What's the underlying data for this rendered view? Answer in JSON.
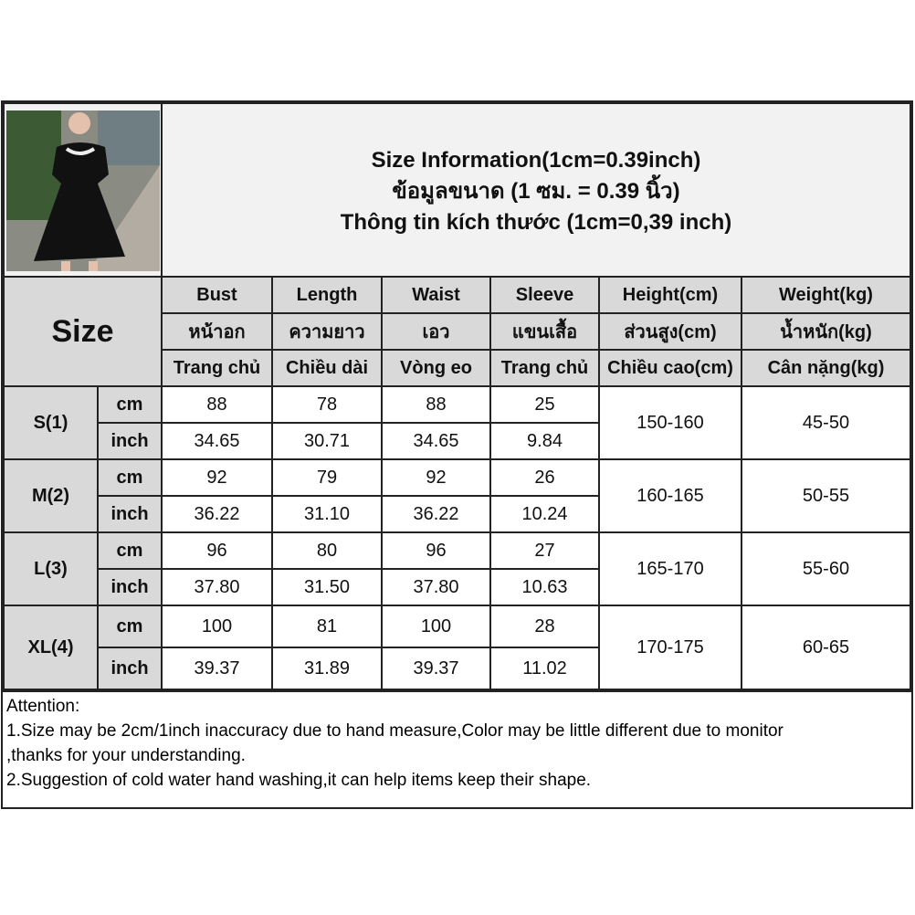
{
  "title_lines": [
    "Size Information(1cm=0.39inch)",
    "ข้อมูลขนาด (1 ซม. = 0.39 นิ้ว)",
    "Thông tin kích thước (1cm=0,39 inch)"
  ],
  "size_label": "Size",
  "columns": [
    {
      "en": "Bust",
      "th": "หน้าอก",
      "vi": "Trang chủ"
    },
    {
      "en": "Length",
      "th": "ความยาว",
      "vi": "Chiều dài"
    },
    {
      "en": "Waist",
      "th": "เอว",
      "vi": "Vòng eo"
    },
    {
      "en": "Sleeve",
      "th": "แขนเสื้อ",
      "vi": "Trang chủ"
    },
    {
      "en": "Height(cm)",
      "th": "ส่วนสูง(cm)",
      "vi": "Chiều cao(cm)"
    },
    {
      "en": "Weight(kg)",
      "th": "น้ำหนัก(kg)",
      "vi": "Cân nặng(kg)"
    }
  ],
  "unit_labels": {
    "cm": "cm",
    "inch": "inch"
  },
  "rows": [
    {
      "size": "S(1)",
      "cm": [
        "88",
        "78",
        "88",
        "25"
      ],
      "inch": [
        "34.65",
        "30.71",
        "34.65",
        "9.84"
      ],
      "height": "150-160",
      "weight": "45-50"
    },
    {
      "size": "M(2)",
      "cm": [
        "92",
        "79",
        "92",
        "26"
      ],
      "inch": [
        "36.22",
        "31.10",
        "36.22",
        "10.24"
      ],
      "height": "160-165",
      "weight": "50-55"
    },
    {
      "size": "L(3)",
      "cm": [
        "96",
        "80",
        "96",
        "27"
      ],
      "inch": [
        "37.80",
        "31.50",
        "37.80",
        "10.63"
      ],
      "height": "165-170",
      "weight": "55-60"
    },
    {
      "size": "XL(4)",
      "cm": [
        "100",
        "81",
        "100",
        "28"
      ],
      "inch": [
        "39.37",
        "31.89",
        "39.37",
        "11.02"
      ],
      "height": "170-175",
      "weight": "60-65"
    }
  ],
  "notes": [
    "Attention:",
    "1.Size may be 2cm/1inch inaccuracy due to hand measure,Color may be little different due to monitor",
    ",thanks for your understanding.",
    "2.Suggestion of cold water hand washing,it can help items keep their shape."
  ],
  "colors": {
    "header_bg": "#d9d9d9",
    "title_bg": "#f2f2f2",
    "border": "#222222"
  }
}
